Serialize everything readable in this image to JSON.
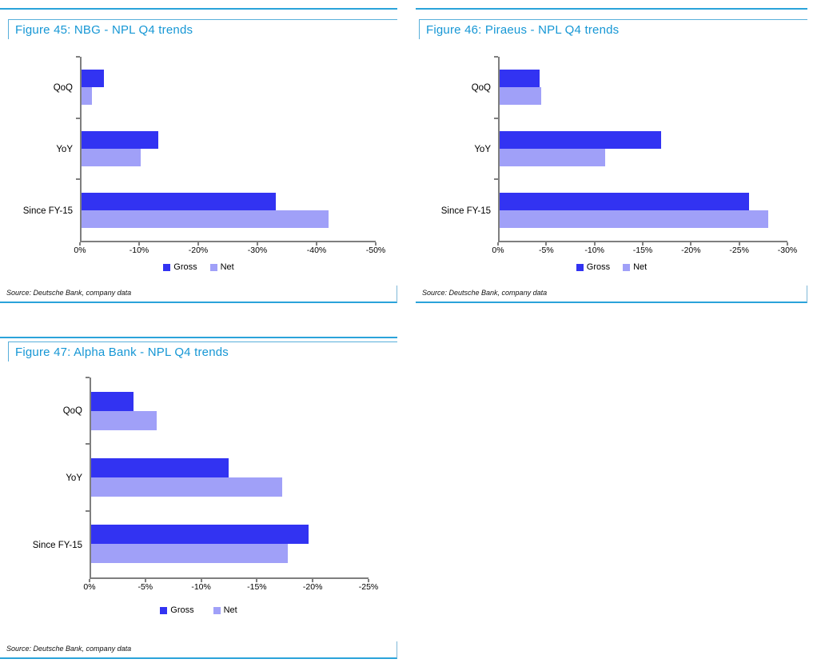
{
  "colors": {
    "accent_cyan": "#2BA3DA",
    "title_text": "#1697D5",
    "box_border": "#58AFDA",
    "axis_gray": "#7F7F7F",
    "gross_bar": "#3233F2",
    "net_bar": "#A0A0F8"
  },
  "chart_data": [
    {
      "type": "bar",
      "orientation": "horizontal",
      "title": "Figure 45: NBG - NPL Q4 trends",
      "categories": [
        "QoQ",
        "YoY",
        "Since FY-15"
      ],
      "series": [
        {
          "name": "Gross",
          "color": "#3233F2",
          "values": [
            -3.8,
            -13,
            -33
          ]
        },
        {
          "name": "Net",
          "color": "#A0A0F8",
          "values": [
            -1.8,
            -10,
            -42
          ]
        }
      ],
      "xlim": [
        0,
        -50
      ],
      "xticks": [
        "0%",
        "-10%",
        "-20%",
        "-30%",
        "-40%",
        "-50%"
      ],
      "grid": false,
      "legend_position": "bottom-center",
      "source": "Source: Deutsche Bank, company data"
    },
    {
      "type": "bar",
      "orientation": "horizontal",
      "title": "Figure 46: Piraeus - NPL Q4 trends",
      "categories": [
        "QoQ",
        "YoY",
        "Since FY-15"
      ],
      "series": [
        {
          "name": "Gross",
          "color": "#3233F2",
          "values": [
            -4.2,
            -16.8,
            -26
          ]
        },
        {
          "name": "Net",
          "color": "#A0A0F8",
          "values": [
            -4.3,
            -11,
            -28
          ]
        }
      ],
      "xlim": [
        0,
        -30
      ],
      "xticks": [
        "0%",
        "-5%",
        "-10%",
        "-15%",
        "-20%",
        "-25%",
        "-30%"
      ],
      "grid": false,
      "legend_position": "bottom-center",
      "source": "Source: Deutsche Bank, company data"
    },
    {
      "type": "bar",
      "orientation": "horizontal",
      "title": "Figure 47: Alpha Bank - NPL Q4 trends",
      "categories": [
        "QoQ",
        "YoY",
        "Since FY-15"
      ],
      "series": [
        {
          "name": "Gross",
          "color": "#3233F2",
          "values": [
            -3.8,
            -12.4,
            -19.6
          ]
        },
        {
          "name": "Net",
          "color": "#A0A0F8",
          "values": [
            -5.9,
            -17.2,
            -17.7
          ]
        }
      ],
      "xlim": [
        0,
        -25
      ],
      "xticks": [
        "0%",
        "-5%",
        "-10%",
        "-15%",
        "-20%",
        "-25%"
      ],
      "grid": false,
      "legend_position": "bottom-center",
      "source": "Source: Deutsche Bank, company data"
    }
  ]
}
